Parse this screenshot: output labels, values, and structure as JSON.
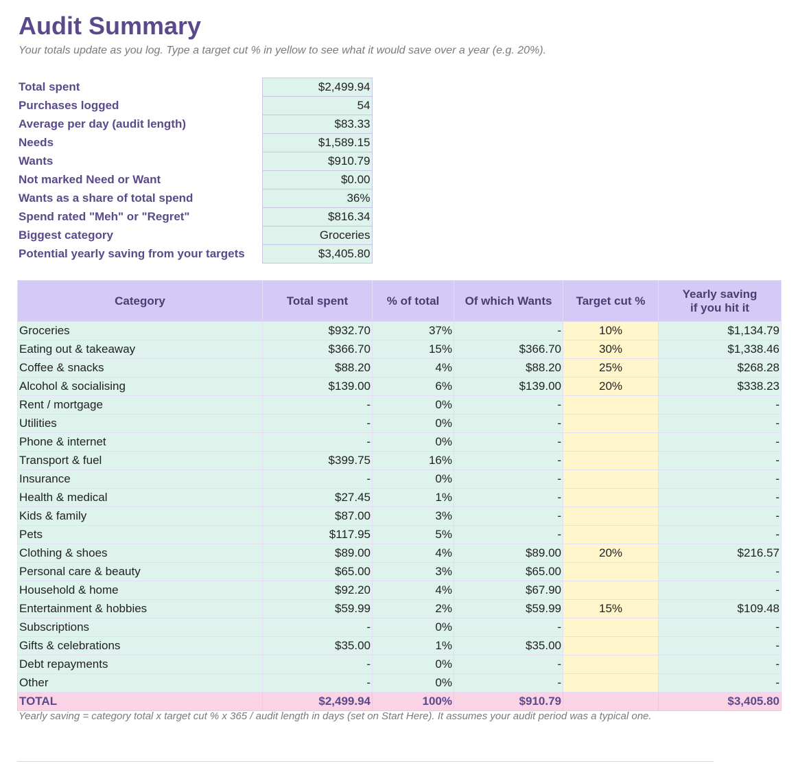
{
  "page": {
    "title": "Audit Summary",
    "subtitle": "Your totals update as you log. Type a target cut % in yellow to see what it would save over a year (e.g. 20%).",
    "footnote": "Yearly saving = category total x target cut % x 365 / audit length in days (set on Start Here). It assumes your audit period was a typical one."
  },
  "summary": [
    {
      "label": "Total spent",
      "value": "$2,499.94"
    },
    {
      "label": "Purchases logged",
      "value": "54"
    },
    {
      "label": "Average per day (audit length)",
      "value": "$83.33"
    },
    {
      "label": "Needs",
      "value": "$1,589.15"
    },
    {
      "label": "Wants",
      "value": "$910.79"
    },
    {
      "label": "Not marked Need or Want",
      "value": "$0.00"
    },
    {
      "label": "Wants as a share of total spend",
      "value": "36%"
    },
    {
      "label": "Spend rated \"Meh\" or \"Regret\"",
      "value": "$816.34"
    },
    {
      "label": "Biggest category",
      "value": "Groceries"
    },
    {
      "label": "Potential yearly saving from your targets",
      "value": "$3,405.80"
    }
  ],
  "categories_table": {
    "headers": {
      "category": "Category",
      "total_spent": "Total spent",
      "pct_total": "% of total",
      "wants": "Of which Wants",
      "target_cut": "Target cut %",
      "yearly_saving_line1": "Yearly saving",
      "yearly_saving_line2": "if you hit it"
    },
    "rows": [
      {
        "category": "Groceries",
        "total": "$932.70",
        "pct": "37%",
        "wants": "-",
        "target": "10%",
        "saving": "$1,134.79"
      },
      {
        "category": "Eating out & takeaway",
        "total": "$366.70",
        "pct": "15%",
        "wants": "$366.70",
        "target": "30%",
        "saving": "$1,338.46"
      },
      {
        "category": "Coffee & snacks",
        "total": "$88.20",
        "pct": "4%",
        "wants": "$88.20",
        "target": "25%",
        "saving": "$268.28"
      },
      {
        "category": "Alcohol & socialising",
        "total": "$139.00",
        "pct": "6%",
        "wants": "$139.00",
        "target": "20%",
        "saving": "$338.23"
      },
      {
        "category": "Rent / mortgage",
        "total": "-",
        "pct": "0%",
        "wants": "-",
        "target": "",
        "saving": "-"
      },
      {
        "category": "Utilities",
        "total": "-",
        "pct": "0%",
        "wants": "-",
        "target": "",
        "saving": "-"
      },
      {
        "category": "Phone & internet",
        "total": "-",
        "pct": "0%",
        "wants": "-",
        "target": "",
        "saving": "-"
      },
      {
        "category": "Transport & fuel",
        "total": "$399.75",
        "pct": "16%",
        "wants": "-",
        "target": "",
        "saving": "-"
      },
      {
        "category": "Insurance",
        "total": "-",
        "pct": "0%",
        "wants": "-",
        "target": "",
        "saving": "-"
      },
      {
        "category": "Health & medical",
        "total": "$27.45",
        "pct": "1%",
        "wants": "-",
        "target": "",
        "saving": "-"
      },
      {
        "category": "Kids & family",
        "total": "$87.00",
        "pct": "3%",
        "wants": "-",
        "target": "",
        "saving": "-"
      },
      {
        "category": "Pets",
        "total": "$117.95",
        "pct": "5%",
        "wants": "-",
        "target": "",
        "saving": "-"
      },
      {
        "category": "Clothing & shoes",
        "total": "$89.00",
        "pct": "4%",
        "wants": "$89.00",
        "target": "20%",
        "saving": "$216.57"
      },
      {
        "category": "Personal care & beauty",
        "total": "$65.00",
        "pct": "3%",
        "wants": "$65.00",
        "target": "",
        "saving": "-"
      },
      {
        "category": "Household & home",
        "total": "$92.20",
        "pct": "4%",
        "wants": "$67.90",
        "target": "",
        "saving": "-"
      },
      {
        "category": "Entertainment & hobbies",
        "total": "$59.99",
        "pct": "2%",
        "wants": "$59.99",
        "target": "15%",
        "saving": "$109.48"
      },
      {
        "category": "Subscriptions",
        "total": "-",
        "pct": "0%",
        "wants": "-",
        "target": "",
        "saving": "-"
      },
      {
        "category": "Gifts & celebrations",
        "total": "$35.00",
        "pct": "1%",
        "wants": "$35.00",
        "target": "",
        "saving": "-"
      },
      {
        "category": "Debt repayments",
        "total": "-",
        "pct": "0%",
        "wants": "-",
        "target": "",
        "saving": "-"
      },
      {
        "category": "Other",
        "total": "-",
        "pct": "0%",
        "wants": "-",
        "target": "",
        "saving": "-"
      }
    ],
    "total_row": {
      "category": "TOTAL",
      "total": "$2,499.94",
      "pct": "100%",
      "wants": "$910.79",
      "target": "",
      "saving": "$3,405.80"
    }
  },
  "colors": {
    "accent": "#5b4a8b",
    "value_cell": "#def3ec",
    "header_row": "#d5c9f5",
    "target_cell": "#fff6cc",
    "total_row": "#fbd3e6"
  }
}
